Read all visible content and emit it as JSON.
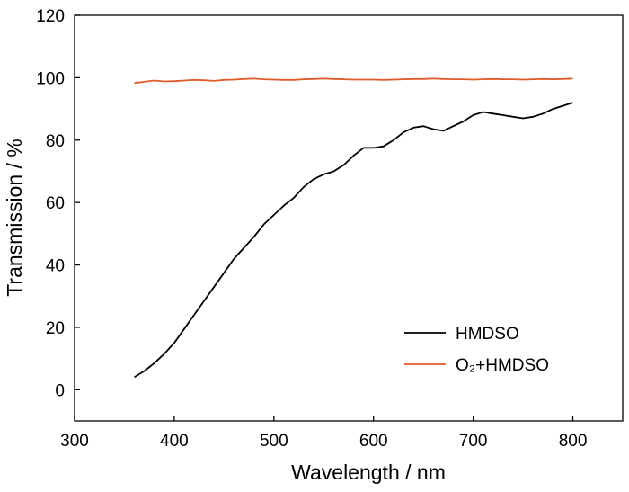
{
  "chart_data": {
    "type": "line",
    "xlabel": "Wavelength / nm",
    "ylabel": "Transmission / %",
    "xlim": [
      300,
      850
    ],
    "ylim": [
      -10,
      120
    ],
    "xticks": [
      300,
      400,
      500,
      600,
      700,
      800
    ],
    "yticks": [
      0,
      20,
      40,
      60,
      80,
      100,
      120
    ],
    "grid": false,
    "legend_position": "bottom-right",
    "series": [
      {
        "name": "HMDSO",
        "color": "#000000",
        "x": [
          360,
          370,
          380,
          390,
          400,
          410,
          420,
          430,
          440,
          450,
          460,
          470,
          480,
          490,
          500,
          510,
          520,
          530,
          540,
          550,
          560,
          570,
          580,
          590,
          600,
          610,
          620,
          630,
          640,
          650,
          660,
          670,
          680,
          690,
          700,
          710,
          720,
          730,
          740,
          750,
          760,
          770,
          780,
          790,
          800
        ],
        "y": [
          4,
          6,
          8.5,
          11.5,
          15,
          19.5,
          24,
          28.5,
          33,
          37.5,
          42,
          45.5,
          49,
          53,
          56,
          59,
          61.5,
          65,
          67.5,
          69,
          70,
          72,
          75,
          77.5,
          77.5,
          78,
          80,
          82.5,
          84,
          84.5,
          83.5,
          83,
          84.5,
          86,
          88,
          89,
          88.5,
          88,
          87.5,
          87,
          87.5,
          88.5,
          90,
          91,
          92
        ]
      },
      {
        "name": "O₂+HMDSO",
        "color": "#e05a2b",
        "x": [
          360,
          370,
          380,
          390,
          400,
          410,
          420,
          430,
          440,
          450,
          460,
          470,
          480,
          490,
          500,
          510,
          520,
          530,
          540,
          550,
          560,
          570,
          580,
          590,
          600,
          610,
          620,
          630,
          640,
          650,
          660,
          670,
          680,
          690,
          700,
          710,
          720,
          730,
          740,
          750,
          760,
          770,
          780,
          790,
          800
        ],
        "y": [
          98.3,
          98.7,
          99.1,
          98.8,
          98.9,
          99.1,
          99.3,
          99.2,
          99.0,
          99.3,
          99.4,
          99.6,
          99.7,
          99.5,
          99.4,
          99.3,
          99.3,
          99.5,
          99.6,
          99.7,
          99.6,
          99.5,
          99.4,
          99.4,
          99.4,
          99.3,
          99.4,
          99.5,
          99.6,
          99.6,
          99.7,
          99.6,
          99.5,
          99.5,
          99.4,
          99.5,
          99.6,
          99.5,
          99.5,
          99.4,
          99.5,
          99.6,
          99.5,
          99.6,
          99.7
        ]
      }
    ]
  }
}
